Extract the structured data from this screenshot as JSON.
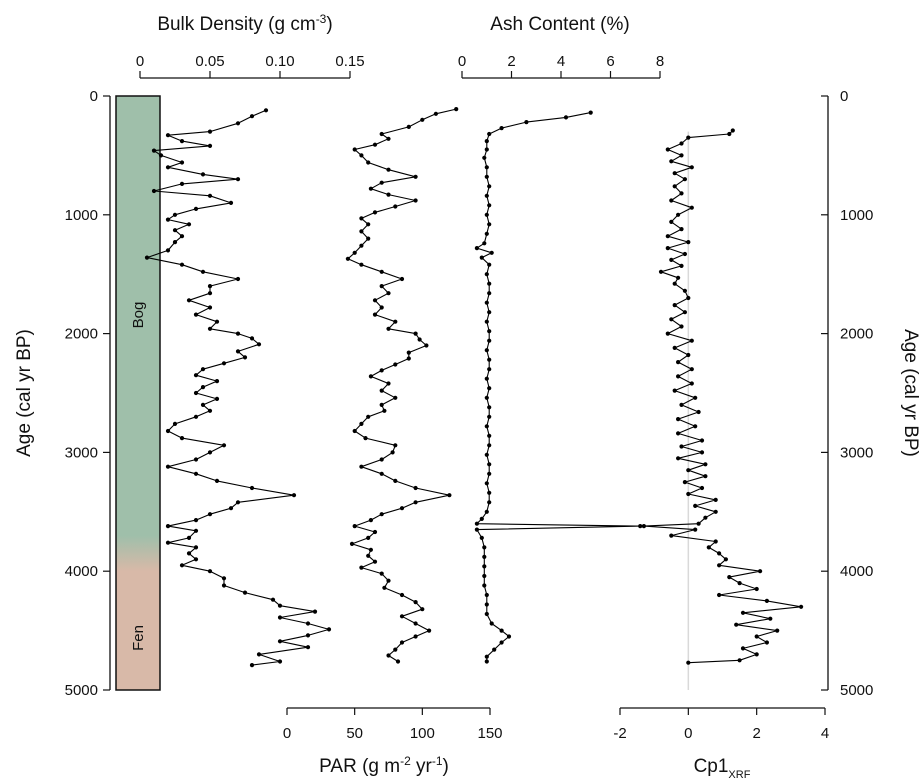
{
  "chart_data": {
    "type": "line",
    "age_axis": {
      "label": "Age (cal yr BP)",
      "range": [
        0,
        5000
      ],
      "ticks": [
        0,
        1000,
        2000,
        3000,
        4000,
        5000
      ]
    },
    "stratigraphy": {
      "units": [
        {
          "label": "Bog",
          "from_age": 0,
          "to_age": 3700,
          "color": "#9fbfaa"
        },
        {
          "label": "Fen",
          "from_age": 4000,
          "to_age": 5000,
          "color": "#d8b9a8"
        }
      ],
      "transition_age": [
        3700,
        4000
      ]
    },
    "bulk_density": {
      "label": "Bulk Density (g cm-3)",
      "range": [
        0,
        0.15
      ],
      "ticks": [
        "0",
        "0.05",
        "0.10",
        "0.15"
      ],
      "tick_values": [
        0,
        0.05,
        0.1,
        0.15
      ],
      "points": [
        [
          120,
          0.09
        ],
        [
          170,
          0.08
        ],
        [
          230,
          0.07
        ],
        [
          300,
          0.05
        ],
        [
          330,
          0.02
        ],
        [
          380,
          0.03
        ],
        [
          420,
          0.05
        ],
        [
          460,
          0.01
        ],
        [
          500,
          0.015
        ],
        [
          560,
          0.03
        ],
        [
          600,
          0.02
        ],
        [
          660,
          0.045
        ],
        [
          700,
          0.07
        ],
        [
          740,
          0.03
        ],
        [
          800,
          0.01
        ],
        [
          840,
          0.05
        ],
        [
          900,
          0.065
        ],
        [
          950,
          0.04
        ],
        [
          1000,
          0.025
        ],
        [
          1040,
          0.02
        ],
        [
          1080,
          0.035
        ],
        [
          1130,
          0.025
        ],
        [
          1180,
          0.03
        ],
        [
          1230,
          0.025
        ],
        [
          1300,
          0.02
        ],
        [
          1360,
          0.005
        ],
        [
          1420,
          0.03
        ],
        [
          1480,
          0.045
        ],
        [
          1540,
          0.07
        ],
        [
          1600,
          0.05
        ],
        [
          1660,
          0.05
        ],
        [
          1720,
          0.035
        ],
        [
          1780,
          0.05
        ],
        [
          1840,
          0.04
        ],
        [
          1900,
          0.055
        ],
        [
          1960,
          0.05
        ],
        [
          2000,
          0.07
        ],
        [
          2040,
          0.08
        ],
        [
          2090,
          0.085
        ],
        [
          2150,
          0.07
        ],
        [
          2200,
          0.075
        ],
        [
          2250,
          0.06
        ],
        [
          2300,
          0.045
        ],
        [
          2350,
          0.04
        ],
        [
          2400,
          0.055
        ],
        [
          2450,
          0.045
        ],
        [
          2500,
          0.04
        ],
        [
          2550,
          0.055
        ],
        [
          2600,
          0.045
        ],
        [
          2650,
          0.05
        ],
        [
          2700,
          0.04
        ],
        [
          2760,
          0.025
        ],
        [
          2820,
          0.02
        ],
        [
          2880,
          0.03
        ],
        [
          2940,
          0.06
        ],
        [
          3000,
          0.05
        ],
        [
          3060,
          0.04
        ],
        [
          3120,
          0.02
        ],
        [
          3180,
          0.04
        ],
        [
          3240,
          0.055
        ],
        [
          3300,
          0.08
        ],
        [
          3360,
          0.11
        ],
        [
          3420,
          0.07
        ],
        [
          3470,
          0.065
        ],
        [
          3520,
          0.05
        ],
        [
          3570,
          0.04
        ],
        [
          3620,
          0.02
        ],
        [
          3660,
          0.04
        ],
        [
          3720,
          0.035
        ],
        [
          3760,
          0.02
        ],
        [
          3800,
          0.04
        ],
        [
          3850,
          0.035
        ],
        [
          3900,
          0.04
        ],
        [
          3950,
          0.03
        ],
        [
          4000,
          0.05
        ],
        [
          4060,
          0.06
        ],
        [
          4120,
          0.06
        ],
        [
          4180,
          0.075
        ],
        [
          4240,
          0.095
        ],
        [
          4290,
          0.1
        ],
        [
          4340,
          0.125
        ],
        [
          4390,
          0.1
        ],
        [
          4440,
          0.12
        ],
        [
          4490,
          0.135
        ],
        [
          4540,
          0.12
        ],
        [
          4590,
          0.1
        ],
        [
          4640,
          0.12
        ],
        [
          4700,
          0.085
        ],
        [
          4760,
          0.1
        ],
        [
          4790,
          0.08
        ]
      ]
    },
    "par": {
      "label": "PAR (g m-2 yr-1)",
      "range": [
        0,
        150
      ],
      "ticks": [
        "0",
        "50",
        "100",
        "150"
      ],
      "tick_values": [
        0,
        50,
        100,
        150
      ],
      "points": [
        [
          110,
          125
        ],
        [
          150,
          110
        ],
        [
          200,
          100
        ],
        [
          260,
          90
        ],
        [
          320,
          70
        ],
        [
          360,
          75
        ],
        [
          410,
          65
        ],
        [
          450,
          50
        ],
        [
          500,
          55
        ],
        [
          560,
          60
        ],
        [
          620,
          75
        ],
        [
          680,
          95
        ],
        [
          730,
          70
        ],
        [
          780,
          62
        ],
        [
          830,
          75
        ],
        [
          880,
          95
        ],
        [
          930,
          80
        ],
        [
          980,
          65
        ],
        [
          1030,
          55
        ],
        [
          1080,
          60
        ],
        [
          1140,
          55
        ],
        [
          1200,
          60
        ],
        [
          1260,
          55
        ],
        [
          1320,
          50
        ],
        [
          1370,
          45
        ],
        [
          1420,
          55
        ],
        [
          1480,
          70
        ],
        [
          1540,
          85
        ],
        [
          1600,
          70
        ],
        [
          1660,
          75
        ],
        [
          1720,
          65
        ],
        [
          1780,
          70
        ],
        [
          1840,
          65
        ],
        [
          1900,
          80
        ],
        [
          1960,
          75
        ],
        [
          2000,
          95
        ],
        [
          2050,
          98
        ],
        [
          2100,
          103
        ],
        [
          2160,
          90
        ],
        [
          2210,
          90
        ],
        [
          2260,
          80
        ],
        [
          2310,
          70
        ],
        [
          2360,
          62
        ],
        [
          2420,
          75
        ],
        [
          2480,
          70
        ],
        [
          2540,
          80
        ],
        [
          2600,
          70
        ],
        [
          2650,
          72
        ],
        [
          2700,
          60
        ],
        [
          2760,
          55
        ],
        [
          2820,
          50
        ],
        [
          2880,
          58
        ],
        [
          2940,
          80
        ],
        [
          3000,
          78
        ],
        [
          3060,
          70
        ],
        [
          3120,
          55
        ],
        [
          3180,
          70
        ],
        [
          3240,
          80
        ],
        [
          3300,
          95
        ],
        [
          3360,
          120
        ],
        [
          3420,
          95
        ],
        [
          3470,
          85
        ],
        [
          3520,
          70
        ],
        [
          3570,
          62
        ],
        [
          3620,
          50
        ],
        [
          3670,
          65
        ],
        [
          3720,
          60
        ],
        [
          3770,
          48
        ],
        [
          3820,
          62
        ],
        [
          3870,
          60
        ],
        [
          3920,
          65
        ],
        [
          3970,
          55
        ],
        [
          4020,
          70
        ],
        [
          4080,
          75
        ],
        [
          4140,
          72
        ],
        [
          4200,
          85
        ],
        [
          4260,
          95
        ],
        [
          4320,
          100
        ],
        [
          4380,
          85
        ],
        [
          4440,
          95
        ],
        [
          4500,
          105
        ],
        [
          4550,
          95
        ],
        [
          4600,
          85
        ],
        [
          4660,
          80
        ],
        [
          4710,
          75
        ],
        [
          4760,
          82
        ]
      ]
    },
    "ash": {
      "label": "Ash Content (%)",
      "range": [
        0,
        8
      ],
      "ticks": [
        "0",
        "2",
        "4",
        "6",
        "8"
      ],
      "tick_values": [
        0,
        2,
        4,
        6,
        8
      ],
      "points": [
        [
          140,
          5.2
        ],
        [
          180,
          4.2
        ],
        [
          220,
          2.6
        ],
        [
          270,
          1.6
        ],
        [
          320,
          1.1
        ],
        [
          380,
          1.0
        ],
        [
          450,
          1.0
        ],
        [
          520,
          0.9
        ],
        [
          600,
          1.0
        ],
        [
          680,
          1.0
        ],
        [
          760,
          1.1
        ],
        [
          840,
          1.0
        ],
        [
          920,
          1.1
        ],
        [
          1000,
          1.0
        ],
        [
          1080,
          1.1
        ],
        [
          1160,
          1.0
        ],
        [
          1240,
          0.9
        ],
        [
          1280,
          0.6
        ],
        [
          1320,
          1.2
        ],
        [
          1360,
          0.8
        ],
        [
          1420,
          1.1
        ],
        [
          1500,
          1.0
        ],
        [
          1580,
          1.1
        ],
        [
          1660,
          1.1
        ],
        [
          1740,
          1.0
        ],
        [
          1820,
          1.1
        ],
        [
          1900,
          1.0
        ],
        [
          1980,
          1.1
        ],
        [
          2060,
          1.1
        ],
        [
          2140,
          1.0
        ],
        [
          2220,
          1.1
        ],
        [
          2300,
          1.1
        ],
        [
          2380,
          1.0
        ],
        [
          2460,
          1.1
        ],
        [
          2540,
          1.0
        ],
        [
          2620,
          1.1
        ],
        [
          2700,
          1.1
        ],
        [
          2780,
          1.0
        ],
        [
          2860,
          1.1
        ],
        [
          2940,
          1.1
        ],
        [
          3020,
          1.0
        ],
        [
          3100,
          1.1
        ],
        [
          3180,
          1.1
        ],
        [
          3260,
          1.0
        ],
        [
          3340,
          1.1
        ],
        [
          3420,
          1.1
        ],
        [
          3500,
          1.0
        ],
        [
          3560,
          0.8
        ],
        [
          3600,
          0.6
        ],
        [
          3620,
          7.2
        ],
        [
          3650,
          0.6
        ],
        [
          3720,
          0.8
        ],
        [
          3800,
          0.9
        ],
        [
          3880,
          0.9
        ],
        [
          3960,
          0.9
        ],
        [
          4040,
          0.9
        ],
        [
          4120,
          0.9
        ],
        [
          4200,
          1.0
        ],
        [
          4280,
          1.0
        ],
        [
          4360,
          1.0
        ],
        [
          4440,
          1.2
        ],
        [
          4500,
          1.6
        ],
        [
          4550,
          1.9
        ],
        [
          4600,
          1.6
        ],
        [
          4660,
          1.3
        ],
        [
          4720,
          1.0
        ],
        [
          4760,
          1.0
        ]
      ]
    },
    "cp1": {
      "label": "Cp1",
      "label_subscript": "XRF",
      "range": [
        -2,
        4
      ],
      "ticks": [
        "-2",
        "0",
        "2",
        "4"
      ],
      "tick_values": [
        -2,
        0,
        2,
        4
      ],
      "zero_line": true,
      "points": [
        [
          290,
          1.3
        ],
        [
          320,
          1.2
        ],
        [
          350,
          0
        ],
        [
          400,
          -0.2
        ],
        [
          450,
          -0.6
        ],
        [
          500,
          -0.2
        ],
        [
          550,
          -0.5
        ],
        [
          600,
          0.1
        ],
        [
          650,
          -0.4
        ],
        [
          700,
          -0.1
        ],
        [
          760,
          -0.4
        ],
        [
          820,
          -0.2
        ],
        [
          880,
          -0.5
        ],
        [
          940,
          0.1
        ],
        [
          1000,
          -0.3
        ],
        [
          1060,
          -0.5
        ],
        [
          1120,
          -0.2
        ],
        [
          1180,
          -0.6
        ],
        [
          1230,
          0
        ],
        [
          1280,
          -0.6
        ],
        [
          1330,
          -0.1
        ],
        [
          1380,
          -0.5
        ],
        [
          1430,
          -0.2
        ],
        [
          1480,
          -0.8
        ],
        [
          1530,
          -0.3
        ],
        [
          1580,
          -0.4
        ],
        [
          1640,
          -0.1
        ],
        [
          1700,
          0
        ],
        [
          1760,
          -0.4
        ],
        [
          1820,
          -0.1
        ],
        [
          1880,
          -0.5
        ],
        [
          1940,
          -0.2
        ],
        [
          2000,
          -0.6
        ],
        [
          2060,
          0.1
        ],
        [
          2120,
          -0.4
        ],
        [
          2180,
          0
        ],
        [
          2240,
          -0.3
        ],
        [
          2300,
          0.1
        ],
        [
          2360,
          -0.3
        ],
        [
          2420,
          0.1
        ],
        [
          2480,
          -0.4
        ],
        [
          2540,
          0.2
        ],
        [
          2600,
          -0.2
        ],
        [
          2660,
          0.3
        ],
        [
          2720,
          -0.3
        ],
        [
          2780,
          0.2
        ],
        [
          2840,
          -0.3
        ],
        [
          2900,
          0.4
        ],
        [
          2950,
          -0.2
        ],
        [
          3000,
          0.4
        ],
        [
          3050,
          -0.3
        ],
        [
          3100,
          0.5
        ],
        [
          3150,
          0
        ],
        [
          3200,
          0.5
        ],
        [
          3250,
          -0.1
        ],
        [
          3300,
          0.4
        ],
        [
          3350,
          0
        ],
        [
          3400,
          0.8
        ],
        [
          3450,
          0.2
        ],
        [
          3500,
          0.8
        ],
        [
          3550,
          0.5
        ],
        [
          3600,
          0.3
        ],
        [
          3620,
          -1.3
        ],
        [
          3650,
          0.2
        ],
        [
          3700,
          -0.5
        ],
        [
          3750,
          0.8
        ],
        [
          3800,
          0.6
        ],
        [
          3850,
          0.9
        ],
        [
          3900,
          1.1
        ],
        [
          3950,
          0.9
        ],
        [
          4000,
          2.1
        ],
        [
          4050,
          1.2
        ],
        [
          4100,
          1.5
        ],
        [
          4150,
          2.0
        ],
        [
          4200,
          0.9
        ],
        [
          4250,
          2.3
        ],
        [
          4300,
          3.3
        ],
        [
          4350,
          1.6
        ],
        [
          4400,
          2.4
        ],
        [
          4450,
          1.4
        ],
        [
          4500,
          2.6
        ],
        [
          4550,
          2.0
        ],
        [
          4600,
          2.3
        ],
        [
          4650,
          1.6
        ],
        [
          4700,
          2.0
        ],
        [
          4750,
          1.5
        ],
        [
          4770,
          0.0
        ]
      ]
    }
  }
}
